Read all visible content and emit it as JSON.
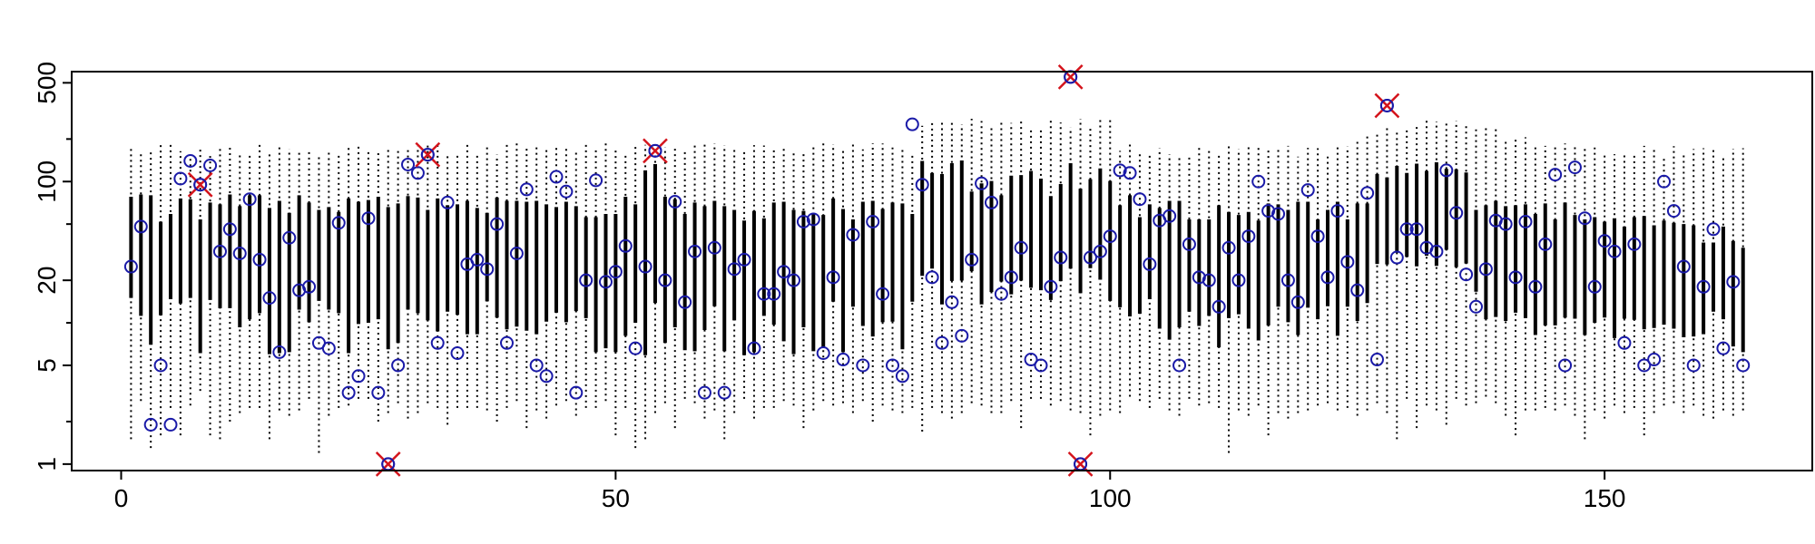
{
  "chart_data": {
    "type": "scatter",
    "title": "",
    "xlabel": "",
    "ylabel": "",
    "y_scale": "log",
    "xlim": [
      -5,
      171
    ],
    "ylim": [
      0.9,
      600
    ],
    "x_ticks": [
      0,
      50,
      100,
      150
    ],
    "x_tick_labels": [
      "0",
      "50",
      "100",
      "150"
    ],
    "y_ticks": [
      1,
      5,
      20,
      100,
      500
    ],
    "y_tick_labels": [
      "1",
      "5",
      "20",
      "100",
      "500"
    ],
    "y_minor_ticks": [
      2,
      10,
      50,
      200
    ],
    "grid": false,
    "colors": {
      "interval_thin": "#000000",
      "interval_thick": "#000000",
      "point": "#1a1aa8",
      "cross": "#d4141c"
    },
    "series": [
      {
        "kind": "interval",
        "n": 164,
        "thin_lower": [
          1.5,
          2.8,
          1.3,
          1.6,
          2.5,
          1.6,
          2.6,
          3.3,
          1.6,
          1.5,
          2.0,
          2.3,
          2.5,
          2.5,
          1.5,
          2.4,
          2.2,
          2.4,
          2.9,
          1.2,
          2.2,
          2.5,
          2.6,
          2.9,
          2.9,
          2.0,
          2.3,
          2.7,
          2.1,
          2.3,
          2.7,
          2.5,
          1.9,
          2.5,
          2.5,
          2.5,
          2.4,
          2.0,
          2.5,
          2.8,
          1.8,
          2.4,
          2.1,
          2.6,
          2.8,
          2.2,
          2.5,
          2.5,
          2.8,
          1.6,
          2.5,
          1.3,
          1.5,
          2.3,
          2.7,
          1.8,
          2.9,
          2.7,
          2.1,
          2.4,
          1.5,
          2.3,
          2.9,
          2.1,
          2.5,
          2.5,
          2.8,
          2.6,
          1.8,
          2.4,
          2.8,
          2.6,
          2.7,
          2.3,
          2.8,
          2.0,
          2.6,
          2.4,
          2.3,
          2.5,
          1.7,
          2.5,
          2.3,
          2.1,
          2.3,
          2.7,
          2.6,
          2.3,
          2.3,
          2.8,
          1.8,
          2.9,
          2.9,
          2.6,
          2.8,
          2.4,
          2.3,
          1.6,
          2.2,
          2.4,
          2.3,
          3.0,
          2.8,
          2.5,
          2.9,
          2.4,
          2.2,
          2.9,
          2.6,
          2.7,
          2.5,
          1.2,
          2.4,
          2.2,
          2.6,
          1.6,
          2.3,
          2.1,
          2.3,
          2.4,
          2.6,
          2.7,
          2.4,
          2.5,
          2.2,
          2.4,
          2.7,
          2.3,
          1.5,
          2.9,
          1.8,
          2.6,
          2.4,
          1.9,
          2.9,
          2.6,
          2.7,
          3.0,
          2.7,
          2.2,
          1.6,
          2.4,
          2.4,
          2.5,
          2.4,
          2.6,
          2.2,
          1.5,
          2.4,
          2.1,
          2.6,
          2.3,
          2.5,
          1.6,
          2.3,
          2.6,
          2.7,
          2.3,
          2.6,
          2.2,
          2.1,
          2.4,
          2.2,
          2.4
        ],
        "thin_upper": [
          171,
          160,
          164,
          185,
          190,
          164,
          150,
          170,
          155,
          176,
          184,
          162,
          159,
          183,
          156,
          176,
          170,
          162,
          165,
          154,
          163,
          156,
          176,
          178,
          168,
          167,
          176,
          170,
          173,
          178,
          183,
          187,
          151,
          157,
          186,
          158,
          184,
          155,
          190,
          186,
          175,
          180,
          169,
          183,
          174,
          165,
          183,
          168,
          187,
          167,
          156,
          179,
          182,
          167,
          175,
          175,
          169,
          181,
          183,
          186,
          181,
          172,
          171,
          181,
          180,
          173,
          180,
          163,
          163,
          176,
          186,
          184,
          174,
          190,
          169,
          186,
          186,
          174,
          171,
          160,
          248,
          262,
          268,
          271,
          254,
          278,
          268,
          246,
          264,
          260,
          274,
          240,
          244,
          272,
          262,
          242,
          278,
          238,
          284,
          278,
          165,
          186,
          163,
          161,
          172,
          156,
          153,
          155,
          181,
          167,
          160,
          180,
          170,
          179,
          181,
          168,
          168,
          179,
          150,
          173,
          172,
          150,
          180,
          177,
          196,
          221,
          223,
          240,
          235,
          233,
          249,
          273,
          266,
          268,
          268,
          247,
          234,
          250,
          248,
          196,
          209,
          206,
          185,
          179,
          177,
          186,
          184,
          177,
          174,
          159,
          156,
          162,
          155,
          179,
          173,
          152,
          178,
          159,
          170,
          172,
          175,
          154,
          171,
          172
        ],
        "thick_lower": [
          15.0,
          11.2,
          7.0,
          11.3,
          14.7,
          13.7,
          15.0,
          6.1,
          14.5,
          12.7,
          12.7,
          9.3,
          10.6,
          11.7,
          6.0,
          6.1,
          6.2,
          12.4,
          10.1,
          14.3,
          12.4,
          11.7,
          6.1,
          9.8,
          10.0,
          10.6,
          6.5,
          7.2,
          12.4,
          11.7,
          10.4,
          8.7,
          12.0,
          11.4,
          8.3,
          8.3,
          14.2,
          10.9,
          9.0,
          9.4,
          8.8,
          8.3,
          10.2,
          11.8,
          10.1,
          12.1,
          10.8,
          6.2,
          6.6,
          6.2,
          8.1,
          10.0,
          5.9,
          13.8,
          7.2,
          9.3,
          6.4,
          6.3,
          8.9,
          13.1,
          6.3,
          10.4,
          5.9,
          6.2,
          11.2,
          9.7,
          7.4,
          6.0,
          9.3,
          6.3,
          6.7,
          14.1,
          6.2,
          13.0,
          9.5,
          8.0,
          10.1,
          10.2,
          6.5,
          14.1,
          21.5,
          24.2,
          13.5,
          19.8,
          19.9,
          23.2,
          13.5,
          16.5,
          19.6,
          15.9,
          19.9,
          17.7,
          17.0,
          14.5,
          19.7,
          24.2,
          16.2,
          24.4,
          20.2,
          14.3,
          12.9,
          11.1,
          11.6,
          14.7,
          9.1,
          7.6,
          9.3,
          12.0,
          9.5,
          11.2,
          6.7,
          10.8,
          11.5,
          9.1,
          7.5,
          9.6,
          13.0,
          10.1,
          8.2,
          12.8,
          10.6,
          13.1,
          8.1,
          13.0,
          10.3,
          13.8,
          26.1,
          25.9,
          31.4,
          29.3,
          25.1,
          29.9,
          25.3,
          32.9,
          24.8,
          26.3,
          16.6,
          10.6,
          11.0,
          10.3,
          11.8,
          10.8,
          8.2,
          9.6,
          9.6,
          10.9,
          10.7,
          8.2,
          10.0,
          10.9,
          7.8,
          10.7,
          10.5,
          9.0,
          9.2,
          9.7,
          9.1,
          7.9,
          8.0,
          8.3,
          12.0,
          10.6,
          6.8,
          6.2
        ],
        "thick_upper": [
          78,
          81,
          80,
          52,
          59,
          76,
          75,
          54,
          71,
          69,
          81,
          67,
          80,
          80,
          65,
          73,
          60,
          80,
          71,
          63,
          66,
          61,
          76,
          72,
          74,
          78,
          66,
          70,
          79,
          77,
          63,
          76,
          68,
          69,
          73,
          65,
          60,
          77,
          73,
          73,
          72,
          73,
          69,
          66,
          72,
          67,
          56,
          56,
          59,
          59,
          78,
          69,
          120,
          133,
          78,
          75,
          59,
          71,
          67,
          73,
          67,
          63,
          53,
          62,
          55,
          71,
          72,
          63,
          62,
          59,
          58,
          76,
          64,
          54,
          72,
          73,
          64,
          71,
          70,
          59,
          140,
          115,
          113,
          135,
          141,
          85,
          97,
          101,
          80,
          110,
          111,
          119,
          105,
          79,
          96,
          135,
          89,
          104,
          124,
          101,
          68,
          80,
          56,
          69,
          65,
          73,
          73,
          54,
          54,
          54,
          68,
          61,
          58,
          61,
          53,
          70,
          69,
          63,
          72,
          72,
          54,
          63,
          72,
          54,
          70,
          70,
          113,
          107,
          129,
          115,
          134,
          119,
          137,
          123,
          122,
          116,
          63,
          68,
          73,
          67,
          68,
          69,
          59,
          70,
          54,
          71,
          58,
          54,
          56,
          52,
          55,
          48,
          56,
          57,
          49,
          53,
          51,
          50,
          49,
          37,
          37,
          48,
          38,
          34
        ]
      },
      {
        "kind": "points",
        "marker": "circle",
        "x": [
          1,
          2,
          3,
          4,
          5,
          6,
          7,
          8,
          9,
          10,
          11,
          12,
          13,
          14,
          15,
          16,
          17,
          18,
          19,
          20,
          21,
          22,
          23,
          24,
          25,
          26,
          27,
          28,
          29,
          30,
          31,
          32,
          33,
          34,
          35,
          36,
          37,
          38,
          39,
          40,
          41,
          42,
          43,
          44,
          45,
          46,
          47,
          48,
          49,
          50,
          51,
          52,
          53,
          54,
          55,
          56,
          57,
          58,
          59,
          60,
          61,
          62,
          63,
          64,
          65,
          66,
          67,
          68,
          69,
          70,
          71,
          72,
          73,
          74,
          75,
          76,
          77,
          78,
          79,
          80,
          81,
          82,
          83,
          84,
          85,
          86,
          87,
          88,
          89,
          90,
          91,
          92,
          93,
          94,
          95,
          96,
          97,
          98,
          99,
          100,
          101,
          102,
          103,
          104,
          105,
          106,
          107,
          108,
          109,
          110,
          111,
          112,
          113,
          114,
          115,
          116,
          117,
          118,
          119,
          120,
          121,
          122,
          123,
          124,
          125,
          126,
          127,
          128,
          129,
          130,
          131,
          132,
          133,
          134,
          135,
          136,
          137,
          138,
          139,
          140,
          141,
          142,
          143,
          144,
          145,
          146,
          147,
          148,
          149,
          150,
          151,
          152,
          153,
          154,
          155,
          156,
          157,
          158,
          159,
          160,
          161,
          162,
          163,
          164
        ],
        "y": [
          25,
          48,
          1.9,
          5.0,
          1.9,
          105,
          140,
          95,
          130,
          32,
          46,
          31,
          75,
          28,
          15,
          6.2,
          40,
          17,
          18,
          7.2,
          6.6,
          51,
          3.2,
          4.2,
          55,
          3.2,
          1.0,
          5.0,
          132,
          115,
          155,
          7.2,
          71,
          6.1,
          26,
          28,
          24,
          50,
          7.2,
          31,
          88,
          5.0,
          4.2,
          108,
          85,
          3.2,
          20,
          102,
          19.5,
          23,
          35,
          6.6,
          25,
          165,
          20,
          72,
          14,
          32,
          3.2,
          34,
          3.2,
          24,
          28,
          6.6,
          16,
          16,
          23,
          20,
          52,
          54,
          6.1,
          21,
          5.5,
          42,
          5.0,
          52,
          16,
          5.0,
          4.2,
          254,
          95,
          21,
          7.2,
          14,
          8.1,
          28,
          97,
          71,
          16,
          21,
          34,
          5.5,
          5.0,
          18,
          29,
          550,
          1.0,
          29,
          32,
          41,
          120,
          115,
          75,
          26,
          53,
          57,
          5.0,
          36,
          21,
          20,
          13,
          34,
          20,
          41,
          100,
          62,
          59,
          20,
          14,
          87,
          41,
          21,
          62,
          27,
          17,
          83,
          5.5,
          345,
          29,
          46,
          46,
          34,
          32,
          120,
          60,
          22,
          13,
          24,
          53,
          50,
          21,
          52,
          18,
          36,
          112,
          5.0,
          126,
          55,
          18,
          38,
          32,
          7.2,
          36,
          5.0,
          5.5,
          100,
          62,
          25,
          5.0,
          18,
          46,
          6.6,
          19.5,
          5.0
        ]
      },
      {
        "kind": "points",
        "marker": "cross",
        "x": [
          8,
          27,
          31,
          54,
          96,
          97,
          128
        ],
        "y": [
          95,
          1.0,
          155,
          165,
          550,
          1.0,
          345
        ]
      }
    ]
  }
}
